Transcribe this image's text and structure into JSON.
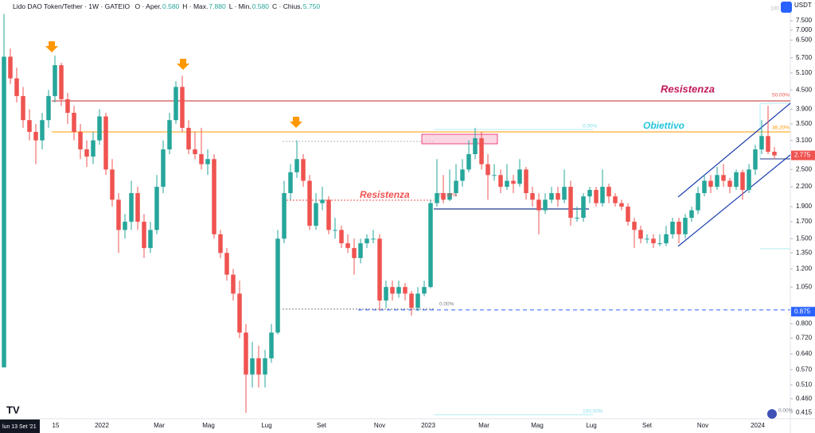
{
  "chart_data": {
    "type": "candlestick",
    "title": "Lido DAO Token/Tether · 1W · GATEIO",
    "ohlc_header": [
      {
        "label": "O · Aper.",
        "value": "0.580"
      },
      {
        "label": "H · Max.",
        "value": "7.880"
      },
      {
        "label": "L · Min.",
        "value": "0.580"
      },
      {
        "label": "C · Chius.",
        "value": "5.750"
      }
    ],
    "currency": "USDT",
    "start_label": "lun 13 Set '21",
    "log_scale": true,
    "up_color": "#26a69a",
    "down_color": "#ef5350",
    "ylim": [
      0.397,
      8.74
    ],
    "yticks": [
      {
        "value": 7.5,
        "label": "7.500"
      },
      {
        "value": 7,
        "label": "7.000"
      },
      {
        "value": 6.5,
        "label": "6.500"
      },
      {
        "value": 5.7,
        "label": "5.700"
      },
      {
        "value": 5.1,
        "label": "5.100"
      },
      {
        "value": 4.5,
        "label": "4.500"
      },
      {
        "value": 3.9,
        "label": "3.900"
      },
      {
        "value": 3.5,
        "label": "3.500"
      },
      {
        "value": 3.1,
        "label": "3.100"
      },
      {
        "value": 2.5,
        "label": "2.500"
      },
      {
        "value": 2.2,
        "label": "2.200"
      },
      {
        "value": 1.9,
        "label": "1.900"
      },
      {
        "value": 1.7,
        "label": "1.700"
      },
      {
        "value": 1.5,
        "label": "1.500"
      },
      {
        "value": 1.35,
        "label": "1.350"
      },
      {
        "value": 1.2,
        "label": "1.200"
      },
      {
        "value": 1.05,
        "label": "1.050"
      },
      {
        "value": 0.8,
        "label": "0.800"
      },
      {
        "value": 0.72,
        "label": "0.720"
      },
      {
        "value": 0.64,
        "label": "0.640"
      },
      {
        "value": 0.57,
        "label": "0.570"
      },
      {
        "value": 0.51,
        "label": "0.510"
      },
      {
        "value": 0.46,
        "label": "0.460"
      },
      {
        "value": 0.415,
        "label": "0.415"
      }
    ],
    "xticks": [
      "15",
      "2022",
      "Mar",
      "Mag",
      "Lug",
      "Set",
      "Nov",
      "2023",
      "Mar",
      "Mag",
      "Lug",
      "Set",
      "Nov",
      "2024"
    ],
    "price_tags": [
      {
        "value": 2.775,
        "label": "2.775",
        "color": "#ef5350"
      },
      {
        "value": 0.875,
        "label": "0.875",
        "color": "#2962ff"
      }
    ],
    "annotations": [
      {
        "text": "Resistenza",
        "color": "#c2185b"
      },
      {
        "text": "Resistenza",
        "color": "#ef5350"
      },
      {
        "text": "Obiettivo",
        "color": "#26c6da"
      },
      {
        "text": "50.00%",
        "color": "#ef5350"
      },
      {
        "text": "38.20%",
        "color": "#ff9800"
      },
      {
        "text": "0.00%",
        "color": "#80deea"
      },
      {
        "text": "50.00%",
        "color": "#ef5350"
      },
      {
        "text": "0.00%",
        "color": "#787b86"
      },
      {
        "text": "100.00%",
        "color": "#80deea"
      },
      {
        "text": "0.00%",
        "color": "#787b86"
      },
      {
        "text": "100",
        "color": "#b2b5be"
      }
    ],
    "candles": [
      [
        0.58,
        7.88,
        0.58,
        5.75
      ],
      [
        5.75,
        6.1,
        4.7,
        4.9
      ],
      [
        4.9,
        5.3,
        4.1,
        4.3
      ],
      [
        4.3,
        4.6,
        3.4,
        3.6
      ],
      [
        3.6,
        3.9,
        3.1,
        3.3
      ],
      [
        3.3,
        3.5,
        2.6,
        3.1
      ],
      [
        3.1,
        3.8,
        2.9,
        3.6
      ],
      [
        3.6,
        4.5,
        3.4,
        4.3
      ],
      [
        4.3,
        5.8,
        4.1,
        5.4
      ],
      [
        5.4,
        5.5,
        4.0,
        4.2
      ],
      [
        4.2,
        4.4,
        3.5,
        3.8
      ],
      [
        3.8,
        4.0,
        3.1,
        3.3
      ],
      [
        3.3,
        3.5,
        2.7,
        2.9
      ],
      [
        2.9,
        3.1,
        2.55,
        2.75
      ],
      [
        2.75,
        3.3,
        2.6,
        3.1
      ],
      [
        3.1,
        3.9,
        3.0,
        3.7
      ],
      [
        3.7,
        3.8,
        2.4,
        2.5
      ],
      [
        2.5,
        2.7,
        1.9,
        2.0
      ],
      [
        2.0,
        2.1,
        1.35,
        1.6
      ],
      [
        1.6,
        1.8,
        1.5,
        1.7
      ],
      [
        1.7,
        2.3,
        1.6,
        2.1
      ],
      [
        2.1,
        2.2,
        1.6,
        1.7
      ],
      [
        1.7,
        1.8,
        1.3,
        1.4
      ],
      [
        1.4,
        1.7,
        1.35,
        1.6
      ],
      [
        1.6,
        2.4,
        1.55,
        2.2
      ],
      [
        2.2,
        3.1,
        2.1,
        2.9
      ],
      [
        2.9,
        3.8,
        2.8,
        3.6
      ],
      [
        3.6,
        4.8,
        3.5,
        4.6
      ],
      [
        4.6,
        5.0,
        3.3,
        3.4
      ],
      [
        3.4,
        3.6,
        2.8,
        2.9
      ],
      [
        2.9,
        3.3,
        2.7,
        2.8
      ],
      [
        2.8,
        3.4,
        2.5,
        2.6
      ],
      [
        2.6,
        2.9,
        2.4,
        2.7
      ],
      [
        2.7,
        2.8,
        1.5,
        1.55
      ],
      [
        1.55,
        1.6,
        1.3,
        1.35
      ],
      [
        1.35,
        1.4,
        1.1,
        1.15
      ],
      [
        1.15,
        1.2,
        0.95,
        1.0
      ],
      [
        1.0,
        1.1,
        0.72,
        0.75
      ],
      [
        0.75,
        0.8,
        0.415,
        0.55
      ],
      [
        0.55,
        0.7,
        0.5,
        0.62
      ],
      [
        0.62,
        0.68,
        0.5,
        0.55
      ],
      [
        0.55,
        0.66,
        0.5,
        0.62
      ],
      [
        0.62,
        0.8,
        0.6,
        0.75
      ],
      [
        0.75,
        1.6,
        0.74,
        1.5
      ],
      [
        1.5,
        2.3,
        1.45,
        2.1
      ],
      [
        2.1,
        2.6,
        2.0,
        2.45
      ],
      [
        2.45,
        3.1,
        2.35,
        2.7
      ],
      [
        2.7,
        2.8,
        2.2,
        2.3
      ],
      [
        2.3,
        2.4,
        1.6,
        1.65
      ],
      [
        1.65,
        2.1,
        1.6,
        1.95
      ],
      [
        1.95,
        2.2,
        1.85,
        2.0
      ],
      [
        2.0,
        2.05,
        1.55,
        1.6
      ],
      [
        1.6,
        1.75,
        1.5,
        1.6
      ],
      [
        1.6,
        1.65,
        1.4,
        1.45
      ],
      [
        1.45,
        1.55,
        1.35,
        1.4
      ],
      [
        1.4,
        1.5,
        1.15,
        1.3
      ],
      [
        1.3,
        1.5,
        1.25,
        1.45
      ],
      [
        1.45,
        1.55,
        1.4,
        1.5
      ],
      [
        1.5,
        1.6,
        1.45,
        1.5
      ],
      [
        1.5,
        1.55,
        0.88,
        0.95
      ],
      [
        0.95,
        1.1,
        0.9,
        1.05
      ],
      [
        1.05,
        1.1,
        0.95,
        1.0
      ],
      [
        1.0,
        1.1,
        0.97,
        1.05
      ],
      [
        1.05,
        1.08,
        0.95,
        1.0
      ],
      [
        1.0,
        1.02,
        0.85,
        0.9
      ],
      [
        0.9,
        1.05,
        0.88,
        1.0
      ],
      [
        1.0,
        1.1,
        0.98,
        1.05
      ],
      [
        1.05,
        2.0,
        1.04,
        1.95
      ],
      [
        1.95,
        2.7,
        1.9,
        2.1
      ],
      [
        2.1,
        2.4,
        1.95,
        2.0
      ],
      [
        2.0,
        2.5,
        1.98,
        2.1
      ],
      [
        2.1,
        2.6,
        2.05,
        2.3
      ],
      [
        2.3,
        2.7,
        2.2,
        2.5
      ],
      [
        2.5,
        3.1,
        2.45,
        2.8
      ],
      [
        2.8,
        3.4,
        2.7,
        3.15
      ],
      [
        3.15,
        3.3,
        2.5,
        2.6
      ],
      [
        2.6,
        2.8,
        2.0,
        2.4
      ],
      [
        2.4,
        2.6,
        2.3,
        2.4
      ],
      [
        2.4,
        2.5,
        2.1,
        2.2
      ],
      [
        2.2,
        2.6,
        2.15,
        2.3
      ],
      [
        2.3,
        2.4,
        2.1,
        2.25
      ],
      [
        2.25,
        2.7,
        2.2,
        2.5
      ],
      [
        2.5,
        2.55,
        2.0,
        2.1
      ],
      [
        2.1,
        2.2,
        1.9,
        2.0
      ],
      [
        2.0,
        2.1,
        1.55,
        1.85
      ],
      [
        1.85,
        2.1,
        1.8,
        2.0
      ],
      [
        2.0,
        2.2,
        1.95,
        2.1
      ],
      [
        2.1,
        2.2,
        1.9,
        2.0
      ],
      [
        2.0,
        2.5,
        1.95,
        2.2
      ],
      [
        2.2,
        2.3,
        1.65,
        1.75
      ],
      [
        1.75,
        1.9,
        1.7,
        1.75
      ],
      [
        1.75,
        2.1,
        1.7,
        2.05
      ],
      [
        2.05,
        2.2,
        1.95,
        2.15
      ],
      [
        2.15,
        2.2,
        1.9,
        1.95
      ],
      [
        1.95,
        2.5,
        1.9,
        2.2
      ],
      [
        2.2,
        2.25,
        1.95,
        2.05
      ],
      [
        2.05,
        2.1,
        1.9,
        1.95
      ],
      [
        1.95,
        2.0,
        1.85,
        1.9
      ],
      [
        1.9,
        1.95,
        1.65,
        1.7
      ],
      [
        1.7,
        1.75,
        1.4,
        1.6
      ],
      [
        1.6,
        1.65,
        1.45,
        1.5
      ],
      [
        1.5,
        1.55,
        1.45,
        1.5
      ],
      [
        1.5,
        1.55,
        1.4,
        1.45
      ],
      [
        1.45,
        1.55,
        1.42,
        1.45
      ],
      [
        1.45,
        1.65,
        1.42,
        1.55
      ],
      [
        1.55,
        1.75,
        1.5,
        1.7
      ],
      [
        1.7,
        1.75,
        1.45,
        1.55
      ],
      [
        1.55,
        1.8,
        1.5,
        1.75
      ],
      [
        1.75,
        1.9,
        1.7,
        1.85
      ],
      [
        1.85,
        2.2,
        1.8,
        2.1
      ],
      [
        2.1,
        2.4,
        2.05,
        2.3
      ],
      [
        2.3,
        2.4,
        2.1,
        2.2
      ],
      [
        2.2,
        2.55,
        2.15,
        2.4
      ],
      [
        2.4,
        2.6,
        2.2,
        2.3
      ],
      [
        2.3,
        2.35,
        2.1,
        2.2
      ],
      [
        2.2,
        2.5,
        2.15,
        2.45
      ],
      [
        2.45,
        2.5,
        2.0,
        2.15
      ],
      [
        2.15,
        2.6,
        2.1,
        2.5
      ],
      [
        2.5,
        3.0,
        2.4,
        2.9
      ],
      [
        2.9,
        3.6,
        2.8,
        3.2
      ],
      [
        3.2,
        4.0,
        2.8,
        2.85
      ],
      [
        2.85,
        2.95,
        2.7,
        2.775
      ]
    ]
  }
}
